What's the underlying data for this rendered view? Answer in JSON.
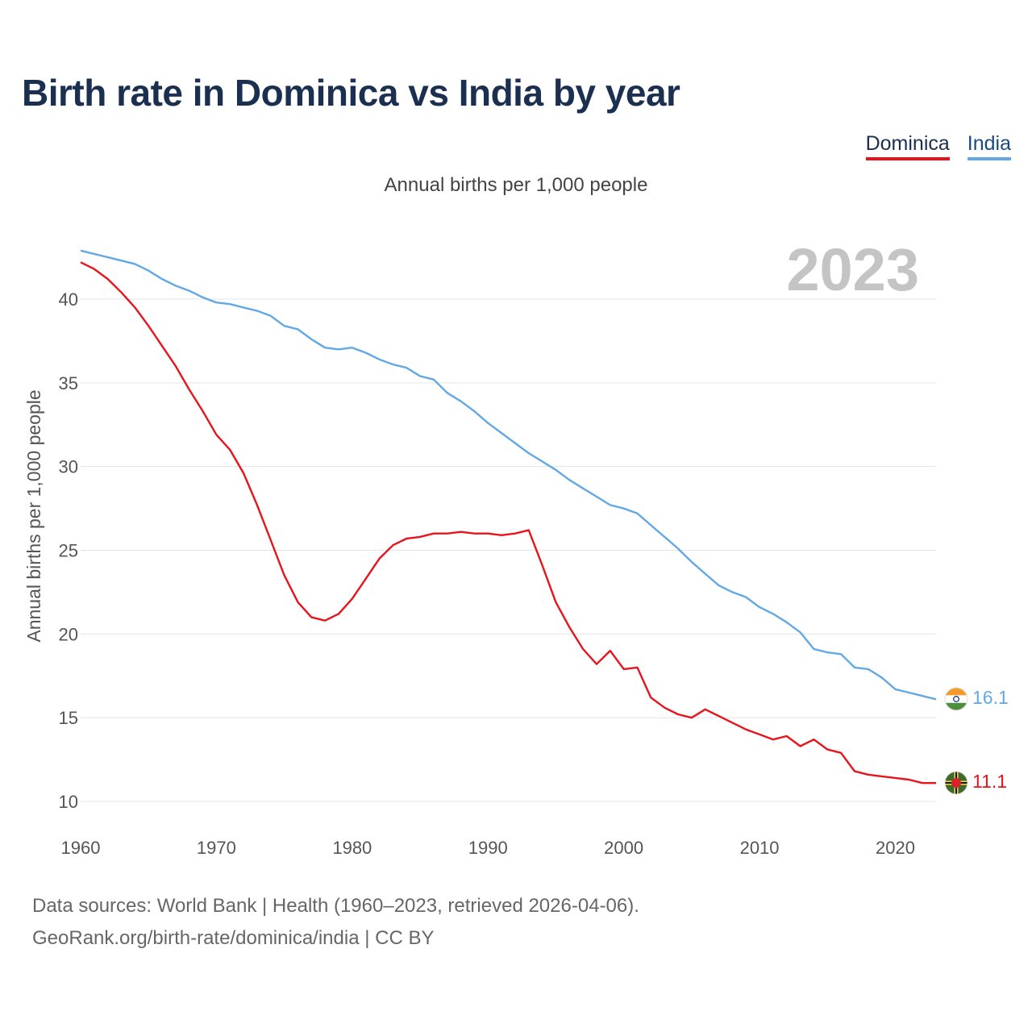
{
  "title": "Birth rate in Dominica vs India by year",
  "subtitle": "Annual births per 1,000 people",
  "legend": [
    {
      "label": "Dominica",
      "color": "#e8141c"
    },
    {
      "label": "India",
      "color": "#62a8e6"
    }
  ],
  "year_watermark": "2023",
  "footer": {
    "line1": "Data sources: World Bank | Health (1960–2023, retrieved 2026-04-06).",
    "line2": "GeoRank.org/birth-rate/dominica/india | CC BY"
  },
  "end_labels": {
    "india": "16.1",
    "dominica": "11.1"
  },
  "flag_icons": {
    "india": "india-flag-icon",
    "dominica": "dominica-flag-icon"
  },
  "chart_data": {
    "type": "line",
    "title": "Birth rate in Dominica vs India by year",
    "ylabel": "Annual births per 1,000 people",
    "xlabel": "",
    "xlim": [
      1960,
      2023
    ],
    "ylim": [
      10,
      43
    ],
    "x_ticks": [
      1960,
      1970,
      1980,
      1990,
      2000,
      2010,
      2020
    ],
    "y_ticks": [
      10,
      15,
      20,
      25,
      30,
      35,
      40
    ],
    "grid": true,
    "x": [
      1960,
      1961,
      1962,
      1963,
      1964,
      1965,
      1966,
      1967,
      1968,
      1969,
      1970,
      1971,
      1972,
      1973,
      1974,
      1975,
      1976,
      1977,
      1978,
      1979,
      1980,
      1981,
      1982,
      1983,
      1984,
      1985,
      1986,
      1987,
      1988,
      1989,
      1990,
      1991,
      1992,
      1993,
      1994,
      1995,
      1996,
      1997,
      1998,
      1999,
      2000,
      2001,
      2002,
      2003,
      2004,
      2005,
      2006,
      2007,
      2008,
      2009,
      2010,
      2011,
      2012,
      2013,
      2014,
      2015,
      2016,
      2017,
      2018,
      2019,
      2020,
      2021,
      2022,
      2023
    ],
    "series": [
      {
        "name": "Dominica",
        "color": "#e8141c",
        "values": [
          42.2,
          41.8,
          41.2,
          40.4,
          39.5,
          38.4,
          37.2,
          36.0,
          34.6,
          33.3,
          31.9,
          31.0,
          29.6,
          27.7,
          25.6,
          23.5,
          21.9,
          21.0,
          20.8,
          21.2,
          22.1,
          23.3,
          24.5,
          25.3,
          25.7,
          25.8,
          26.0,
          26.0,
          26.1,
          26.0,
          26.0,
          25.9,
          26.0,
          26.2,
          24.1,
          21.9,
          20.4,
          19.1,
          18.2,
          19.0,
          17.9,
          18.0,
          16.2,
          15.6,
          15.2,
          15.0,
          15.5,
          15.1,
          14.7,
          14.3,
          14.0,
          13.7,
          13.9,
          13.3,
          13.7,
          13.1,
          12.9,
          11.8,
          11.6,
          11.5,
          11.4,
          11.3,
          11.1,
          11.1
        ]
      },
      {
        "name": "India",
        "color": "#62a8e6",
        "values": [
          42.9,
          42.7,
          42.5,
          42.3,
          42.1,
          41.7,
          41.2,
          40.8,
          40.5,
          40.1,
          39.8,
          39.7,
          39.5,
          39.3,
          39.0,
          38.4,
          38.2,
          37.6,
          37.1,
          37.0,
          37.1,
          36.8,
          36.4,
          36.1,
          35.9,
          35.4,
          35.2,
          34.4,
          33.9,
          33.3,
          32.6,
          32.0,
          31.4,
          30.8,
          30.3,
          29.8,
          29.2,
          28.7,
          28.2,
          27.7,
          27.5,
          27.2,
          26.5,
          25.8,
          25.1,
          24.3,
          23.6,
          22.9,
          22.5,
          22.2,
          21.6,
          21.2,
          20.7,
          20.1,
          19.1,
          18.9,
          18.8,
          18.0,
          17.9,
          17.4,
          16.7,
          16.5,
          16.3,
          16.1
        ]
      }
    ]
  }
}
